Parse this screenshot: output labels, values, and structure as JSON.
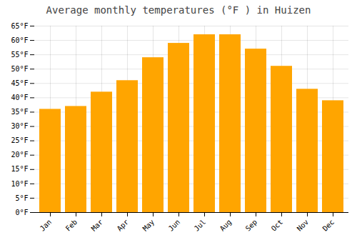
{
  "chart_data": {
    "type": "bar",
    "title": "Average monthly temperatures (°F ) in Huizen",
    "categories": [
      "Jan",
      "Feb",
      "Mar",
      "Apr",
      "May",
      "Jun",
      "Jul",
      "Aug",
      "Sep",
      "Oct",
      "Nov",
      "Dec"
    ],
    "values": [
      36,
      37,
      42,
      46,
      54,
      59,
      62,
      62,
      57,
      51,
      43,
      39
    ],
    "color": "#FFA500",
    "ylim": [
      0,
      65
    ],
    "yticks": [
      {
        "value": 0,
        "label": "0°F"
      },
      {
        "value": 5,
        "label": "5°F"
      },
      {
        "value": 10,
        "label": "10°F"
      },
      {
        "value": 15,
        "label": "15°F"
      },
      {
        "value": 20,
        "label": "20°F"
      },
      {
        "value": 25,
        "label": "25°F"
      },
      {
        "value": 30,
        "label": "30°F"
      },
      {
        "value": 35,
        "label": "35°F"
      },
      {
        "value": 40,
        "label": "40°F"
      },
      {
        "value": 45,
        "label": "45°F"
      },
      {
        "value": 50,
        "label": "50°F"
      },
      {
        "value": 55,
        "label": "55°F"
      },
      {
        "value": 60,
        "label": "60°F"
      },
      {
        "value": 65,
        "label": "65°F"
      }
    ],
    "grid": true
  }
}
